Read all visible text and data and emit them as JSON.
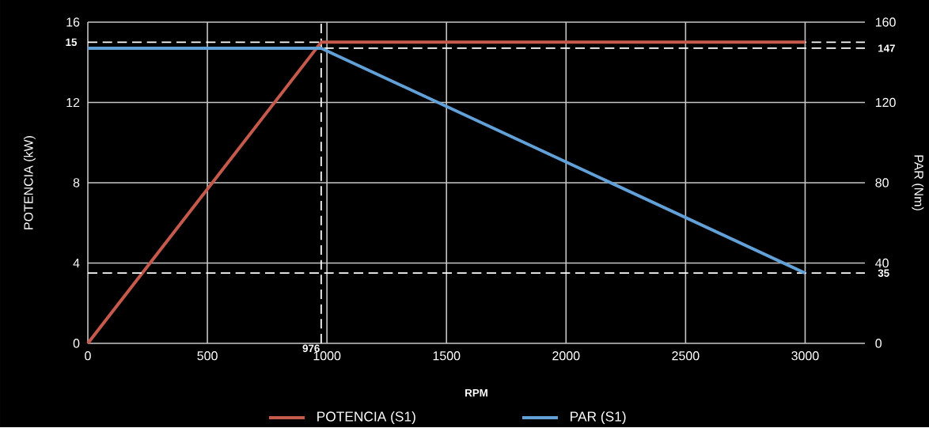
{
  "chart_data": {
    "type": "line",
    "xlabel": "RPM",
    "ylabel": "POTENCIA (kW)",
    "y2label": "PAR (Nm)",
    "xlim": [
      0,
      3250
    ],
    "xticks": [
      0,
      500,
      1000,
      1500,
      2000,
      2500,
      3000
    ],
    "ylim": [
      0,
      16
    ],
    "yticks": [
      0,
      4,
      8,
      12,
      16
    ],
    "y2lim": [
      0,
      160
    ],
    "y2ticks": [
      0,
      40,
      80,
      120,
      160
    ],
    "grid": true,
    "legend": "bottom",
    "marker": "none",
    "line_style": "solid",
    "series": [
      {
        "name": "POTENCIA (S1)",
        "color": "#c55a4c",
        "x": [
          0,
          976,
          3000
        ],
        "values": [
          0,
          15,
          15
        ]
      },
      {
        "name": "PAR (S1)",
        "color": "#62a0d8",
        "x": [
          0,
          976,
          3000
        ],
        "values": [
          147,
          147,
          35
        ],
        "axis": "y2"
      }
    ],
    "ref_lines": [
      {
        "axis": "y",
        "value": 15,
        "label": "15",
        "color": "#ffffff",
        "line_style": "dashed"
      },
      {
        "axis": "y2",
        "value": 147,
        "label": "147",
        "color": "#ffffff",
        "line_style": "dashed"
      },
      {
        "axis": "y2",
        "value": 35,
        "label": "35",
        "color": "#ffffff",
        "line_style": "dashed"
      },
      {
        "axis": "x",
        "value": 976,
        "label": "976",
        "color": "#ffffff",
        "line_style": "dashed"
      }
    ]
  }
}
